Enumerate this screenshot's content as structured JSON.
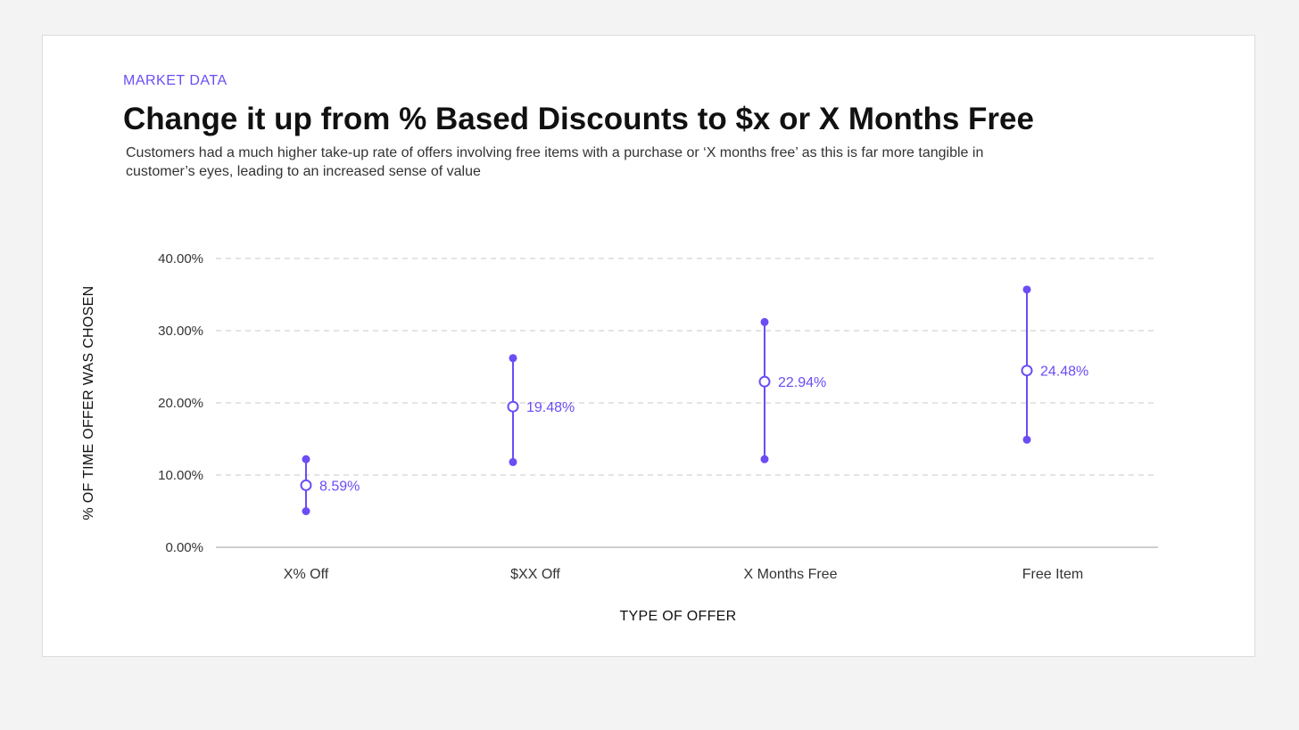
{
  "header": {
    "eyebrow": "MARKET DATA",
    "title": "Change it up from % Based Discounts to $x or X Months Free",
    "subtitle": "Customers had a much higher take-up rate of offers involving free items with a purchase or ‘X months free’ as this is far more tangible in customer’s eyes, leading to an increased sense of value"
  },
  "colors": {
    "accent": "#6c4cf5",
    "grid": "#d4d4d4",
    "axis": "#bdbdbd"
  },
  "chart_data": {
    "type": "scatter",
    "subtype": "range-with-midpoint",
    "categories": [
      "X% Off",
      "$XX Off",
      "X Months Free",
      "Free Item"
    ],
    "series": [
      {
        "name": "",
        "values": [
          8.59,
          19.48,
          22.94,
          24.48
        ]
      }
    ],
    "low": [
      5.0,
      11.8,
      12.2,
      14.9
    ],
    "high": [
      12.2,
      26.2,
      31.2,
      35.7
    ],
    "data_labels": [
      "8.59%",
      "19.48%",
      "22.94%",
      "24.48%"
    ],
    "xlabel": "TYPE OF OFFER",
    "ylabel": "% OF TIME OFFER WAS CHOSEN",
    "ylim": [
      0,
      40
    ],
    "yticks": [
      0,
      10,
      20,
      30,
      40
    ],
    "ytick_labels": [
      "0.00%",
      "10.00%",
      "20.00%",
      "30.00%",
      "40.00%"
    ],
    "grid": true
  }
}
